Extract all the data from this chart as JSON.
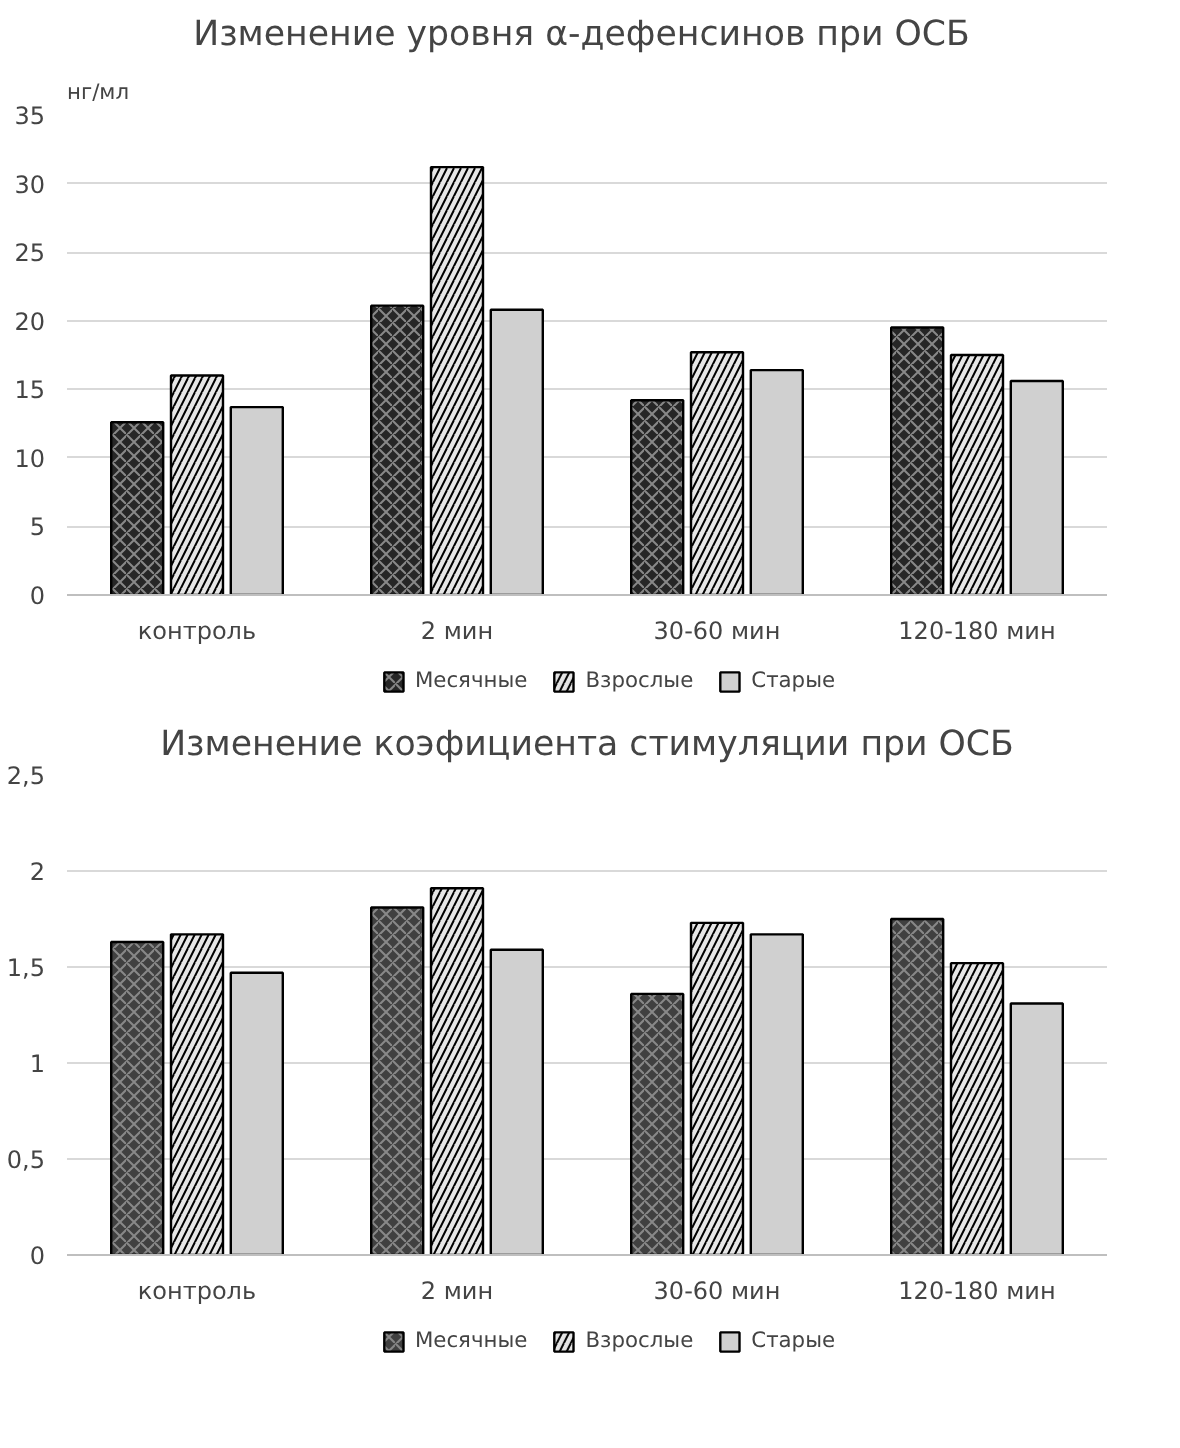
{
  "chart_data": [
    {
      "type": "bar",
      "title": "Изменение уровня  α-дефенсинов при ОСБ",
      "ylabel": "нг/мл",
      "categories": [
        "контроль",
        "2 мин",
        "30-60 мин",
        "120-180 мин"
      ],
      "series": [
        {
          "name": "Месячные",
          "color": "#262626",
          "values": [
            12.6,
            21.1,
            14.2,
            19.5
          ]
        },
        {
          "name": "Взрослые",
          "color": "#e6e6e6",
          "values": [
            16.0,
            31.2,
            17.7,
            17.5
          ]
        },
        {
          "name": "Старые",
          "color": "#d0d0d0",
          "values": [
            13.7,
            20.8,
            16.4,
            15.6
          ]
        }
      ],
      "ylim": [
        0,
        35
      ],
      "yticks": [
        0,
        5,
        10,
        15,
        20,
        25,
        30,
        35
      ],
      "grid": "y",
      "legend": "bottom"
    },
    {
      "type": "bar",
      "title": "Изменение коэфициента стимуляции при ОСБ",
      "categories": [
        "контроль",
        "2 мин",
        "30-60 мин",
        "120-180 мин"
      ],
      "series": [
        {
          "name": "Месячные",
          "color": "#404040",
          "values": [
            1.63,
            1.81,
            1.36,
            1.75
          ]
        },
        {
          "name": "Взрослые",
          "color": "#e6e6e6",
          "values": [
            1.67,
            1.91,
            1.73,
            1.52
          ]
        },
        {
          "name": "Старые",
          "color": "#d0d0d0",
          "values": [
            1.47,
            1.59,
            1.67,
            1.31
          ]
        }
      ],
      "ylim": [
        0,
        2.5
      ],
      "yticks": [
        {
          "value": 0,
          "label": "0"
        },
        {
          "value": 0.5,
          "label": "0,5"
        },
        {
          "value": 1,
          "label": "1"
        },
        {
          "value": 1.5,
          "label": "1,5"
        },
        {
          "value": 2,
          "label": "2"
        },
        {
          "value": 2.5,
          "label": "2,5"
        }
      ],
      "grid": "y",
      "legend": "bottom"
    }
  ]
}
